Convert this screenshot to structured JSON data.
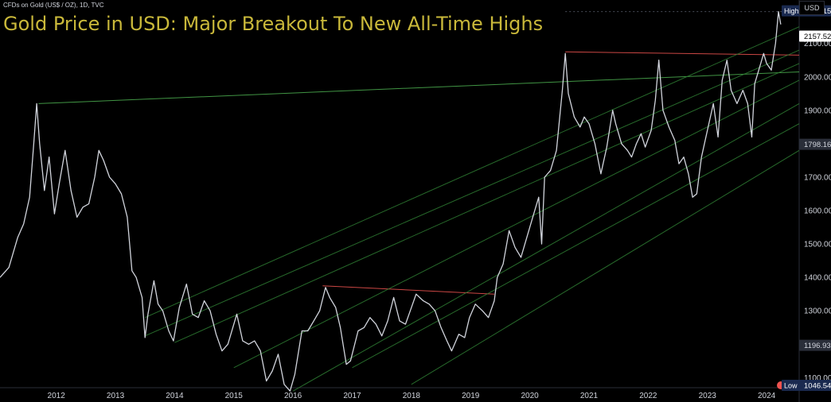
{
  "symbol_line": "CFDs on Gold (US$ / OZ), 1D, TVC",
  "currency": "USD",
  "chart_data": {
    "type": "line",
    "title": "Gold Price in USD: Major Breakout To New All-Time Highs",
    "xlabel": "",
    "ylabel": "",
    "xlim": [
      2011.05,
      2024.55
    ],
    "ylim": [
      1070,
      2230
    ],
    "x_ticks": [
      "2012",
      "2013",
      "2014",
      "2015",
      "2016",
      "2017",
      "2018",
      "2019",
      "2020",
      "2021",
      "2022",
      "2023",
      "2024"
    ],
    "y_ticks": [
      1100,
      1200,
      1300,
      1400,
      1500,
      1600,
      1700,
      1800,
      1900,
      2000,
      2100
    ],
    "series": [
      {
        "color": "#d1d4dc",
        "points": [
          [
            2011.05,
            1400
          ],
          [
            2011.2,
            1430
          ],
          [
            2011.35,
            1520
          ],
          [
            2011.45,
            1560
          ],
          [
            2011.55,
            1640
          ],
          [
            2011.62,
            1800
          ],
          [
            2011.67,
            1920
          ],
          [
            2011.72,
            1800
          ],
          [
            2011.8,
            1660
          ],
          [
            2011.88,
            1760
          ],
          [
            2011.97,
            1590
          ],
          [
            2012.05,
            1680
          ],
          [
            2012.15,
            1780
          ],
          [
            2012.25,
            1660
          ],
          [
            2012.35,
            1580
          ],
          [
            2012.45,
            1610
          ],
          [
            2012.55,
            1620
          ],
          [
            2012.65,
            1700
          ],
          [
            2012.72,
            1780
          ],
          [
            2012.8,
            1750
          ],
          [
            2012.9,
            1700
          ],
          [
            2013.0,
            1680
          ],
          [
            2013.1,
            1650
          ],
          [
            2013.2,
            1580
          ],
          [
            2013.28,
            1420
          ],
          [
            2013.35,
            1400
          ],
          [
            2013.45,
            1340
          ],
          [
            2013.5,
            1220
          ],
          [
            2013.55,
            1290
          ],
          [
            2013.65,
            1390
          ],
          [
            2013.72,
            1320
          ],
          [
            2013.8,
            1300
          ],
          [
            2013.9,
            1240
          ],
          [
            2013.98,
            1210
          ],
          [
            2014.08,
            1310
          ],
          [
            2014.2,
            1380
          ],
          [
            2014.3,
            1290
          ],
          [
            2014.4,
            1280
          ],
          [
            2014.5,
            1330
          ],
          [
            2014.6,
            1300
          ],
          [
            2014.7,
            1230
          ],
          [
            2014.8,
            1180
          ],
          [
            2014.9,
            1200
          ],
          [
            2015.05,
            1290
          ],
          [
            2015.15,
            1210
          ],
          [
            2015.25,
            1200
          ],
          [
            2015.35,
            1210
          ],
          [
            2015.45,
            1180
          ],
          [
            2015.55,
            1090
          ],
          [
            2015.65,
            1120
          ],
          [
            2015.75,
            1170
          ],
          [
            2015.85,
            1080
          ],
          [
            2015.95,
            1060
          ],
          [
            2016.03,
            1110
          ],
          [
            2016.15,
            1240
          ],
          [
            2016.25,
            1240
          ],
          [
            2016.35,
            1270
          ],
          [
            2016.45,
            1300
          ],
          [
            2016.55,
            1370
          ],
          [
            2016.62,
            1340
          ],
          [
            2016.72,
            1310
          ],
          [
            2016.8,
            1250
          ],
          [
            2016.9,
            1140
          ],
          [
            2016.97,
            1150
          ],
          [
            2017.1,
            1240
          ],
          [
            2017.2,
            1250
          ],
          [
            2017.3,
            1280
          ],
          [
            2017.4,
            1260
          ],
          [
            2017.5,
            1225
          ],
          [
            2017.6,
            1270
          ],
          [
            2017.7,
            1340
          ],
          [
            2017.8,
            1270
          ],
          [
            2017.9,
            1260
          ],
          [
            2017.98,
            1300
          ],
          [
            2018.08,
            1350
          ],
          [
            2018.2,
            1330
          ],
          [
            2018.3,
            1320
          ],
          [
            2018.4,
            1300
          ],
          [
            2018.5,
            1250
          ],
          [
            2018.6,
            1210
          ],
          [
            2018.68,
            1180
          ],
          [
            2018.8,
            1230
          ],
          [
            2018.9,
            1220
          ],
          [
            2018.98,
            1280
          ],
          [
            2019.08,
            1320
          ],
          [
            2019.2,
            1300
          ],
          [
            2019.3,
            1280
          ],
          [
            2019.4,
            1330
          ],
          [
            2019.45,
            1400
          ],
          [
            2019.55,
            1440
          ],
          [
            2019.65,
            1540
          ],
          [
            2019.75,
            1490
          ],
          [
            2019.85,
            1460
          ],
          [
            2019.95,
            1520
          ],
          [
            2020.05,
            1580
          ],
          [
            2020.15,
            1640
          ],
          [
            2020.2,
            1500
          ],
          [
            2020.25,
            1700
          ],
          [
            2020.35,
            1720
          ],
          [
            2020.45,
            1780
          ],
          [
            2020.55,
            1960
          ],
          [
            2020.6,
            2070
          ],
          [
            2020.65,
            1950
          ],
          [
            2020.75,
            1880
          ],
          [
            2020.85,
            1850
          ],
          [
            2020.92,
            1880
          ],
          [
            2021.0,
            1860
          ],
          [
            2021.1,
            1800
          ],
          [
            2021.2,
            1710
          ],
          [
            2021.3,
            1790
          ],
          [
            2021.4,
            1900
          ],
          [
            2021.45,
            1860
          ],
          [
            2021.55,
            1800
          ],
          [
            2021.65,
            1780
          ],
          [
            2021.72,
            1760
          ],
          [
            2021.8,
            1800
          ],
          [
            2021.88,
            1830
          ],
          [
            2021.95,
            1790
          ],
          [
            2022.05,
            1840
          ],
          [
            2022.12,
            1930
          ],
          [
            2022.18,
            2050
          ],
          [
            2022.25,
            1900
          ],
          [
            2022.35,
            1850
          ],
          [
            2022.45,
            1810
          ],
          [
            2022.52,
            1740
          ],
          [
            2022.6,
            1760
          ],
          [
            2022.68,
            1710
          ],
          [
            2022.75,
            1640
          ],
          [
            2022.82,
            1650
          ],
          [
            2022.9,
            1760
          ],
          [
            2023.0,
            1840
          ],
          [
            2023.1,
            1920
          ],
          [
            2023.18,
            1820
          ],
          [
            2023.25,
            1990
          ],
          [
            2023.33,
            2050
          ],
          [
            2023.4,
            1960
          ],
          [
            2023.5,
            1920
          ],
          [
            2023.6,
            1960
          ],
          [
            2023.68,
            1920
          ],
          [
            2023.75,
            1820
          ],
          [
            2023.8,
            1980
          ],
          [
            2023.9,
            2040
          ],
          [
            2023.95,
            2070
          ],
          [
            2024.0,
            2040
          ],
          [
            2024.08,
            2020
          ],
          [
            2024.15,
            2100
          ],
          [
            2024.2,
            2195
          ],
          [
            2024.24,
            2157
          ]
        ]
      }
    ],
    "trendlines": [
      {
        "color": "#4caf50",
        "points": [
          [
            2011.7,
            1920
          ],
          [
            2024.55,
            2015
          ]
        ]
      },
      {
        "color": "#ef5350",
        "points": [
          [
            2016.5,
            1375
          ],
          [
            2019.4,
            1350
          ]
        ]
      },
      {
        "color": "#ef5350",
        "points": [
          [
            2020.6,
            2075
          ],
          [
            2024.55,
            2065
          ]
        ]
      },
      {
        "color": "#2e7d32",
        "points": [
          [
            2013.5,
            1280
          ],
          [
            2024.55,
            2150
          ]
        ]
      },
      {
        "color": "#2e7d32",
        "points": [
          [
            2013.5,
            1225
          ],
          [
            2024.55,
            2080
          ]
        ]
      },
      {
        "color": "#2e7d32",
        "points": [
          [
            2014.0,
            1205
          ],
          [
            2024.55,
            2040
          ]
        ]
      },
      {
        "color": "#2e7d32",
        "points": [
          [
            2015.0,
            1130
          ],
          [
            2024.55,
            1990
          ]
        ]
      },
      {
        "color": "#2e7d32",
        "points": [
          [
            2016.0,
            1060
          ],
          [
            2024.55,
            1920
          ]
        ]
      },
      {
        "color": "#2e7d32",
        "points": [
          [
            2017.0,
            1130
          ],
          [
            2024.55,
            1860
          ]
        ]
      },
      {
        "color": "#2e7d32",
        "points": [
          [
            2018.0,
            1080
          ],
          [
            2024.55,
            1780
          ]
        ]
      }
    ],
    "high_line": 2195.15,
    "price_labels": [
      {
        "label": "High",
        "value": "2195.15",
        "y": 2195.15,
        "bg": "#1a2a50",
        "fg": "#ffffff"
      },
      {
        "label": "",
        "value": "2157.52",
        "y": 2157.52,
        "bg": "#ffffff",
        "fg": "#000000"
      },
      {
        "label": "",
        "value": "1798.16",
        "y": 1798.16,
        "bg": "#2a2e39",
        "fg": "#d1d4dc"
      },
      {
        "label": "",
        "value": "1196.93",
        "y": 1196.93,
        "bg": "#2a2e39",
        "fg": "#d1d4dc"
      },
      {
        "label": "Low",
        "value": "1046.54",
        "y": 1046.54,
        "bg": "#1a2a50",
        "fg": "#ffffff"
      }
    ],
    "grid": false
  }
}
